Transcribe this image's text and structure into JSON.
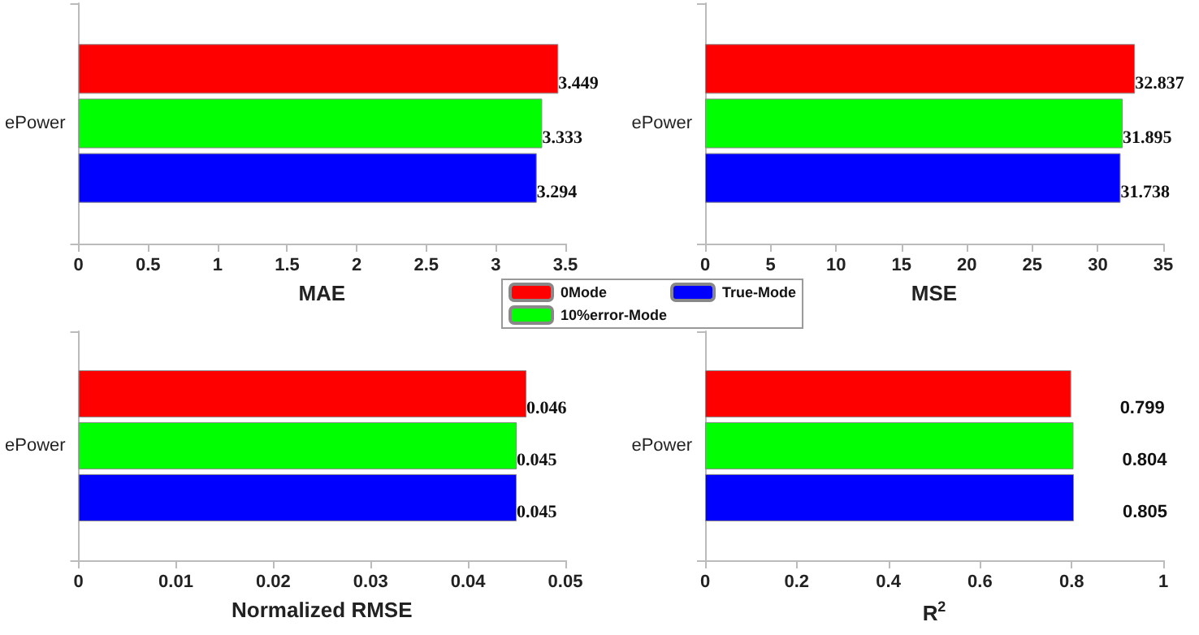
{
  "chart_data": [
    {
      "type": "bar",
      "orientation": "horizontal",
      "xlabel": "MAE",
      "categories": [
        "ePower"
      ],
      "xlim": [
        0,
        3.5
      ],
      "xticks": [
        0,
        0.5,
        1,
        1.5,
        2,
        2.5,
        3,
        3.5
      ],
      "data_labels": true,
      "grid": false,
      "legend": "bottom right",
      "series": [
        {
          "name": "0Mode",
          "color": "#ff0000",
          "values": [
            3.449
          ]
        },
        {
          "name": "10%error-Mode",
          "color": "#00ff00",
          "values": [
            3.333
          ]
        },
        {
          "name": "True-Mode",
          "color": "#0000ff",
          "values": [
            3.294
          ]
        }
      ]
    },
    {
      "type": "bar",
      "orientation": "horizontal",
      "xlabel": "MSE",
      "categories": [
        "ePower"
      ],
      "xlim": [
        0,
        35
      ],
      "xticks": [
        0,
        5,
        10,
        15,
        20,
        25,
        30,
        35
      ],
      "data_labels": true,
      "grid": false,
      "series": [
        {
          "color": "#ff0000",
          "values": [
            32.837
          ]
        },
        {
          "color": "#00ff00",
          "values": [
            31.895
          ]
        },
        {
          "color": "#0000ff",
          "values": [
            31.738
          ]
        }
      ]
    },
    {
      "type": "bar",
      "orientation": "horizontal",
      "xlabel": "Normalized RMSE",
      "categories": [
        "ePower"
      ],
      "xlim": [
        0,
        0.05
      ],
      "xticks": [
        0,
        0.01,
        0.02,
        0.03,
        0.04,
        0.05
      ],
      "data_labels": true,
      "grid": false,
      "series": [
        {
          "color": "#ff0000",
          "values": [
            0.046
          ]
        },
        {
          "color": "#00ff00",
          "values": [
            0.045
          ]
        },
        {
          "color": "#0000ff",
          "values": [
            0.045
          ]
        }
      ]
    },
    {
      "type": "bar",
      "orientation": "horizontal",
      "xlabel": "R$^{2}$",
      "categories": [
        "ePower"
      ],
      "xlim": [
        0,
        1
      ],
      "xticks": [
        0,
        0.2,
        0.4,
        0.6,
        0.8,
        1
      ],
      "data_labels": true,
      "grid": false,
      "series": [
        {
          "color": "#ff0000",
          "values": [
            0.799
          ]
        },
        {
          "color": "#00ff00",
          "values": [
            0.804
          ]
        },
        {
          "color": "#0000ff",
          "values": [
            0.805
          ]
        }
      ]
    }
  ]
}
